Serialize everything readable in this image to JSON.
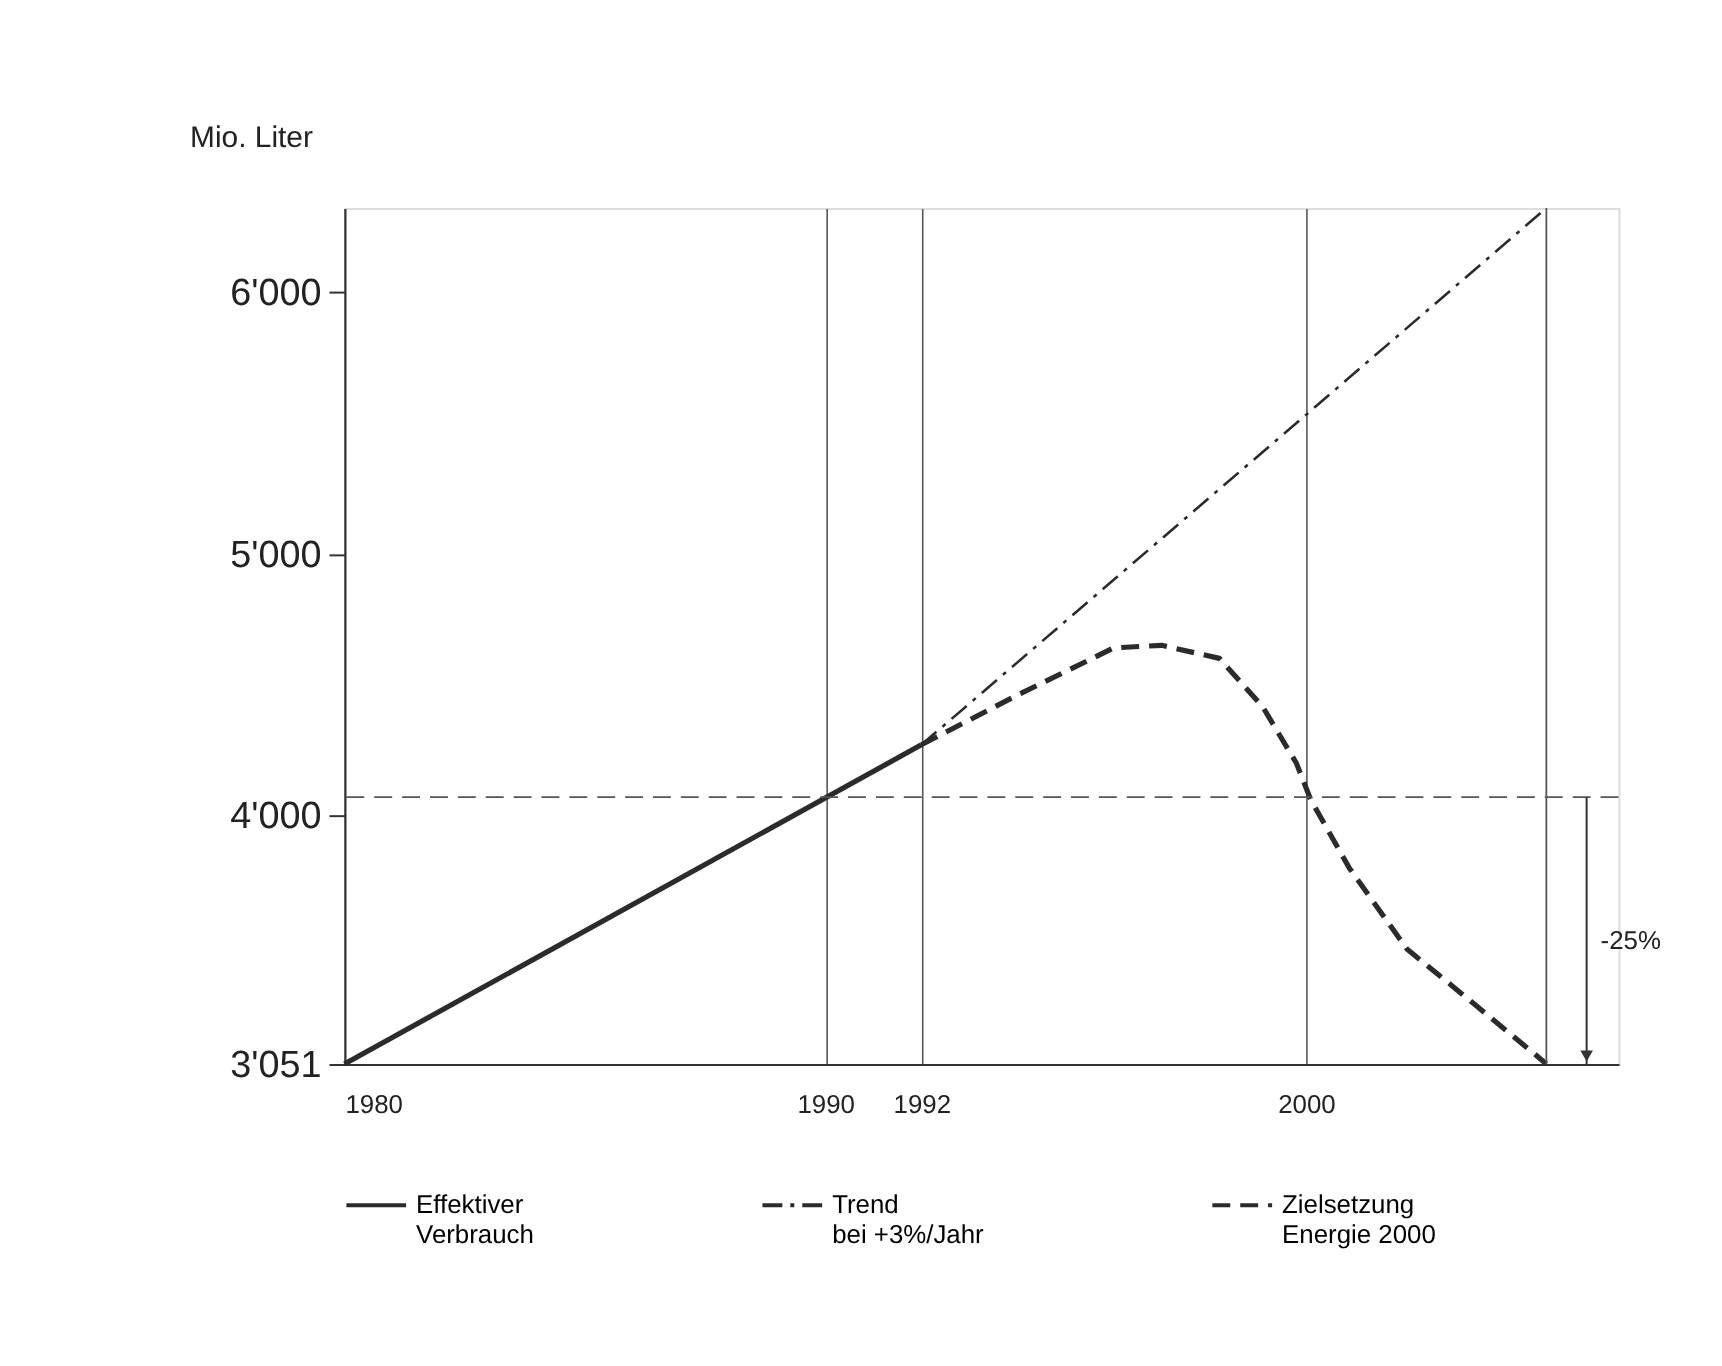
{
  "chart_data": {
    "type": "line",
    "ylabel": "Mio. Liter",
    "xlim": [
      1980,
      2006.5
    ],
    "xticks": [
      1980,
      1990,
      1992,
      2000
    ],
    "ylim": [
      3051,
      6320
    ],
    "yticks": [
      {
        "value": 3051,
        "label": "3'051"
      },
      {
        "value": 4000,
        "label": "4'000"
      },
      {
        "value": 5000,
        "label": "5'000"
      },
      {
        "value": 6000,
        "label": "6'000"
      }
    ],
    "grid": "x",
    "legend": "bottom",
    "series": [
      {
        "name": "Effektiver Verbrauch",
        "color": "#2b2b2b",
        "line_style": "solid",
        "x": [
          1980,
          1992
        ],
        "values": [
          3051,
          4270
        ]
      },
      {
        "name": "Trend bei +3%/Jahr",
        "color": "#2b2b2b",
        "line_style": "dashdot",
        "x": [
          1992,
          2000,
          2005
        ],
        "values": [
          4270,
          5530,
          6320
        ]
      },
      {
        "name": "Zielsetzung Energie 2000",
        "color": "#2b2b2b",
        "line_style": "dashed",
        "x": [
          1992,
          1994,
          1996,
          1997,
          1998.2,
          1999.1,
          1999.8,
          2000.1,
          2000.9,
          2002.1,
          2003.5,
          2004.75,
          2005
        ],
        "values": [
          4270,
          4460,
          4640,
          4650,
          4600,
          4415,
          4200,
          4060,
          3800,
          3490,
          3280,
          3090,
          3051
        ]
      }
    ],
    "ref_lines": [
      {
        "axis": "y",
        "value": 4070,
        "color": "#555555",
        "line_style": "dashed"
      },
      {
        "axis": "x",
        "value": 2005,
        "color": "#555555",
        "line_style": "solid"
      }
    ],
    "annotations": [
      "-25%"
    ]
  }
}
